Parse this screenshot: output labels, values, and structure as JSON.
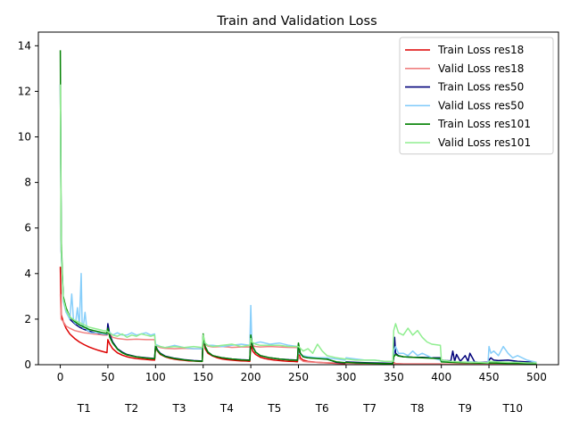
{
  "chart_data": {
    "type": "line",
    "title": "Train and Validation Loss",
    "xlabel": "",
    "ylabel": "",
    "xlim": [
      -23,
      523
    ],
    "ylim": [
      0,
      14.6
    ],
    "xticks": [
      0,
      50,
      100,
      150,
      200,
      250,
      300,
      350,
      400,
      450,
      500
    ],
    "yticks": [
      0,
      2,
      4,
      6,
      8,
      10,
      12,
      14
    ],
    "task_labels": [
      {
        "label": "T1",
        "x": 25
      },
      {
        "label": "T2",
        "x": 75
      },
      {
        "label": "T3",
        "x": 125
      },
      {
        "label": "T4",
        "x": 175
      },
      {
        "label": "T5",
        "x": 225
      },
      {
        "label": "T6",
        "x": 275
      },
      {
        "label": "T7",
        "x": 325
      },
      {
        "label": "T8",
        "x": 375
      },
      {
        "label": "T9",
        "x": 425
      },
      {
        "label": "T10",
        "x": 475
      }
    ],
    "legend_position": "top-right",
    "grid": false,
    "series": [
      {
        "name": "Train Loss res18",
        "color": "#dd0000",
        "x": [
          0,
          1,
          3,
          6,
          10,
          15,
          20,
          25,
          30,
          35,
          40,
          45,
          49,
          50,
          52,
          55,
          60,
          65,
          70,
          75,
          80,
          85,
          90,
          95,
          99,
          100,
          102,
          105,
          110,
          115,
          120,
          125,
          130,
          135,
          140,
          145,
          149,
          150,
          152,
          155,
          160,
          165,
          170,
          175,
          180,
          185,
          190,
          195,
          199,
          200,
          202,
          205,
          210,
          215,
          220,
          225,
          230,
          235,
          240,
          245,
          249,
          250,
          252,
          255,
          260,
          270,
          280,
          290,
          299,
          300,
          310,
          320,
          330,
          340,
          349,
          350,
          352,
          360,
          370,
          380,
          390,
          399,
          400,
          420,
          440,
          449,
          450,
          460,
          480,
          500
        ],
        "y": [
          4.3,
          2.2,
          1.9,
          1.6,
          1.35,
          1.15,
          1.0,
          0.88,
          0.78,
          0.7,
          0.63,
          0.57,
          0.53,
          1.1,
          0.9,
          0.7,
          0.52,
          0.42,
          0.35,
          0.3,
          0.27,
          0.25,
          0.23,
          0.21,
          0.2,
          0.75,
          0.6,
          0.45,
          0.35,
          0.28,
          0.24,
          0.21,
          0.19,
          0.17,
          0.16,
          0.15,
          0.14,
          1.2,
          0.7,
          0.5,
          0.38,
          0.3,
          0.25,
          0.22,
          0.2,
          0.18,
          0.17,
          0.16,
          0.15,
          0.9,
          0.6,
          0.45,
          0.33,
          0.27,
          0.23,
          0.2,
          0.18,
          0.16,
          0.15,
          0.14,
          0.13,
          0.6,
          0.3,
          0.2,
          0.14,
          0.1,
          0.08,
          0.06,
          0.05,
          0.1,
          0.06,
          0.04,
          0.03,
          0.02,
          0.02,
          0.08,
          0.05,
          0.03,
          0.02,
          0.02,
          0.02,
          0.02,
          0.03,
          0.02,
          0.02,
          0.02,
          0.03,
          0.02,
          0.02,
          0.02
        ]
      },
      {
        "name": "Valid Loss res18",
        "color": "#f08080",
        "x": [
          0,
          1,
          3,
          6,
          10,
          15,
          20,
          25,
          30,
          35,
          40,
          45,
          49,
          50,
          55,
          60,
          70,
          80,
          90,
          99,
          100,
          105,
          110,
          120,
          130,
          140,
          149,
          150,
          155,
          160,
          170,
          180,
          190,
          199,
          200,
          205,
          210,
          220,
          230,
          240,
          249,
          250,
          255,
          260,
          270,
          280,
          290,
          299,
          300,
          320,
          340,
          349,
          350,
          360,
          380,
          399,
          400,
          420,
          449,
          450,
          470,
          500
        ],
        "y": [
          3.1,
          2.0,
          1.9,
          1.7,
          1.6,
          1.5,
          1.45,
          1.4,
          1.38,
          1.35,
          1.33,
          1.3,
          1.3,
          1.4,
          1.2,
          1.15,
          1.1,
          1.12,
          1.1,
          1.1,
          0.85,
          0.75,
          0.72,
          0.7,
          0.72,
          0.7,
          0.7,
          0.95,
          0.82,
          0.78,
          0.8,
          0.76,
          0.78,
          0.78,
          0.85,
          0.8,
          0.78,
          0.8,
          0.78,
          0.76,
          0.75,
          0.3,
          0.15,
          0.12,
          0.1,
          0.09,
          0.08,
          0.08,
          0.06,
          0.05,
          0.05,
          0.05,
          0.05,
          0.04,
          0.04,
          0.04,
          0.03,
          0.03,
          0.03,
          0.03,
          0.03,
          0.03
        ]
      },
      {
        "name": "Train Loss res50",
        "color": "#00007a",
        "x": [
          0,
          1,
          3,
          6,
          10,
          15,
          20,
          25,
          30,
          35,
          40,
          45,
          49,
          50,
          52,
          55,
          60,
          65,
          70,
          80,
          90,
          99,
          100,
          102,
          105,
          110,
          120,
          130,
          140,
          149,
          150,
          152,
          155,
          160,
          170,
          180,
          190,
          199,
          200,
          202,
          205,
          210,
          220,
          230,
          240,
          249,
          250,
          252,
          255,
          260,
          270,
          280,
          290,
          299,
          300,
          310,
          320,
          330,
          340,
          349,
          350,
          351,
          352,
          355,
          360,
          370,
          380,
          390,
          399,
          400,
          405,
          410,
          412,
          414,
          416,
          420,
          425,
          428,
          430,
          435,
          440,
          449,
          450,
          452,
          455,
          460,
          470,
          480,
          490,
          500
        ],
        "y": [
          12.3,
          5.0,
          3.0,
          2.4,
          2.0,
          1.8,
          1.65,
          1.55,
          1.48,
          1.42,
          1.38,
          1.35,
          1.33,
          1.8,
          1.3,
          1.0,
          0.7,
          0.55,
          0.45,
          0.35,
          0.3,
          0.27,
          0.85,
          0.65,
          0.5,
          0.38,
          0.28,
          0.22,
          0.18,
          0.16,
          1.3,
          0.8,
          0.55,
          0.4,
          0.3,
          0.25,
          0.22,
          0.2,
          1.2,
          0.8,
          0.55,
          0.4,
          0.3,
          0.25,
          0.22,
          0.2,
          0.9,
          0.5,
          0.35,
          0.3,
          0.28,
          0.25,
          0.1,
          0.08,
          0.12,
          0.1,
          0.09,
          0.08,
          0.07,
          0.06,
          0.3,
          1.2,
          0.5,
          0.4,
          0.35,
          0.33,
          0.32,
          0.3,
          0.3,
          0.2,
          0.18,
          0.17,
          0.6,
          0.15,
          0.45,
          0.15,
          0.4,
          0.15,
          0.5,
          0.12,
          0.1,
          0.1,
          0.2,
          0.3,
          0.2,
          0.18,
          0.2,
          0.15,
          0.12,
          0.1
        ]
      },
      {
        "name": "Valid Loss res50",
        "color": "#87cefa",
        "x": [
          0,
          1,
          3,
          6,
          10,
          12,
          14,
          16,
          18,
          20,
          22,
          23,
          24,
          26,
          28,
          29,
          30,
          32,
          35,
          40,
          45,
          49,
          50,
          55,
          60,
          65,
          70,
          75,
          80,
          85,
          90,
          95,
          99,
          100,
          105,
          110,
          120,
          130,
          140,
          149,
          150,
          155,
          160,
          170,
          180,
          190,
          199,
          200,
          201,
          202,
          205,
          210,
          220,
          230,
          240,
          249,
          250,
          255,
          260,
          270,
          280,
          290,
          299,
          300,
          310,
          320,
          330,
          340,
          349,
          350,
          352,
          355,
          360,
          365,
          370,
          375,
          380,
          390,
          399,
          400,
          410,
          420,
          430,
          440,
          449,
          450,
          452,
          455,
          460,
          465,
          470,
          475,
          480,
          490,
          500
        ],
        "y": [
          12.3,
          5.0,
          2.8,
          2.3,
          2.0,
          3.1,
          1.9,
          1.8,
          2.5,
          1.7,
          4.0,
          1.7,
          1.6,
          2.3,
          1.5,
          1.6,
          1.45,
          1.4,
          1.4,
          1.4,
          1.35,
          1.35,
          1.5,
          1.3,
          1.4,
          1.3,
          1.3,
          1.4,
          1.3,
          1.35,
          1.4,
          1.3,
          1.35,
          0.9,
          0.8,
          0.75,
          0.85,
          0.75,
          0.7,
          0.7,
          1.0,
          0.85,
          0.85,
          0.8,
          0.85,
          0.9,
          0.85,
          2.6,
          1.0,
          0.9,
          0.95,
          1.0,
          0.9,
          0.95,
          0.85,
          0.8,
          0.5,
          0.4,
          0.35,
          0.3,
          0.3,
          0.25,
          0.2,
          0.3,
          0.25,
          0.2,
          0.2,
          0.15,
          0.15,
          0.6,
          0.8,
          0.5,
          0.5,
          0.4,
          0.6,
          0.4,
          0.5,
          0.3,
          0.2,
          0.15,
          0.12,
          0.1,
          0.12,
          0.1,
          0.08,
          0.8,
          0.5,
          0.6,
          0.4,
          0.8,
          0.5,
          0.3,
          0.4,
          0.2,
          0.1
        ]
      },
      {
        "name": "Train Loss res101",
        "color": "#008000",
        "x": [
          0,
          1,
          3,
          6,
          10,
          15,
          20,
          25,
          30,
          35,
          40,
          45,
          49,
          50,
          52,
          55,
          60,
          65,
          70,
          80,
          90,
          99,
          100,
          102,
          105,
          110,
          120,
          130,
          140,
          149,
          150,
          152,
          155,
          160,
          170,
          180,
          190,
          199,
          200,
          202,
          205,
          210,
          220,
          230,
          240,
          249,
          250,
          252,
          255,
          260,
          270,
          280,
          290,
          299,
          300,
          310,
          320,
          330,
          340,
          349,
          350,
          352,
          355,
          360,
          370,
          380,
          390,
          399,
          400,
          410,
          420,
          430,
          440,
          449,
          450,
          460,
          470,
          480,
          490,
          500
        ],
        "y": [
          13.8,
          5.5,
          3.0,
          2.5,
          2.1,
          1.9,
          1.75,
          1.65,
          1.55,
          1.5,
          1.45,
          1.4,
          1.38,
          1.6,
          1.2,
          0.95,
          0.68,
          0.52,
          0.43,
          0.34,
          0.29,
          0.26,
          0.8,
          0.62,
          0.48,
          0.36,
          0.27,
          0.21,
          0.17,
          0.15,
          1.35,
          0.8,
          0.55,
          0.4,
          0.3,
          0.25,
          0.21,
          0.19,
          1.3,
          0.8,
          0.55,
          0.4,
          0.3,
          0.25,
          0.21,
          0.19,
          0.95,
          0.5,
          0.35,
          0.3,
          0.27,
          0.24,
          0.12,
          0.09,
          0.1,
          0.08,
          0.07,
          0.06,
          0.05,
          0.05,
          0.35,
          0.45,
          0.38,
          0.35,
          0.32,
          0.3,
          0.28,
          0.27,
          0.12,
          0.1,
          0.09,
          0.08,
          0.07,
          0.07,
          0.08,
          0.07,
          0.06,
          0.06,
          0.05,
          0.05
        ]
      },
      {
        "name": "Valid Loss res101",
        "color": "#90ee90",
        "x": [
          0,
          1,
          3,
          6,
          10,
          15,
          20,
          25,
          30,
          35,
          40,
          45,
          49,
          50,
          55,
          60,
          65,
          70,
          75,
          80,
          85,
          90,
          95,
          99,
          100,
          105,
          110,
          120,
          130,
          140,
          149,
          150,
          152,
          155,
          160,
          170,
          180,
          190,
          199,
          200,
          201,
          205,
          210,
          220,
          230,
          240,
          249,
          250,
          255,
          260,
          265,
          270,
          275,
          280,
          290,
          299,
          300,
          310,
          320,
          330,
          340,
          349,
          350,
          352,
          355,
          360,
          365,
          370,
          375,
          380,
          385,
          390,
          399,
          400,
          410,
          420,
          430,
          440,
          449,
          450,
          460,
          470,
          480,
          490,
          500
        ],
        "y": [
          12.3,
          5.2,
          2.9,
          2.4,
          2.1,
          1.95,
          1.85,
          1.75,
          1.65,
          1.6,
          1.55,
          1.5,
          1.48,
          1.45,
          1.3,
          1.25,
          1.35,
          1.2,
          1.3,
          1.25,
          1.35,
          1.3,
          1.25,
          1.3,
          0.85,
          0.8,
          0.75,
          0.8,
          0.75,
          0.8,
          0.75,
          1.3,
          0.95,
          0.85,
          0.8,
          0.85,
          0.9,
          0.8,
          0.85,
          1.15,
          1.0,
          0.9,
          0.85,
          0.85,
          0.85,
          0.8,
          0.8,
          0.8,
          0.6,
          0.7,
          0.5,
          0.9,
          0.6,
          0.4,
          0.3,
          0.25,
          0.25,
          0.2,
          0.2,
          0.2,
          0.15,
          0.15,
          1.5,
          1.8,
          1.4,
          1.3,
          1.6,
          1.3,
          1.5,
          1.2,
          1.0,
          0.9,
          0.85,
          0.2,
          0.15,
          0.12,
          0.1,
          0.1,
          0.08,
          0.15,
          0.12,
          0.1,
          0.1,
          0.08,
          0.08
        ]
      }
    ]
  }
}
